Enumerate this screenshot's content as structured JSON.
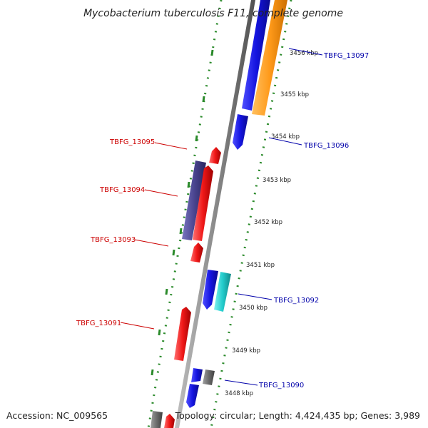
{
  "title": "Mycobacterium tuberculosis F11, complete genome",
  "accession": "Accession: NC_009565",
  "summary": "Topology: circular; Length: 4,424,435 bp; Genes: 3,989",
  "ticks": [
    "3456 kbp",
    "3455 kbp",
    "3454 kbp",
    "3453 kbp",
    "3452 kbp",
    "3451 kbp",
    "3450 kbp",
    "3449 kbp",
    "3448 kbp"
  ],
  "gene_labels": {
    "g13097": "TBFG_13097",
    "g13096": "TBFG_13096",
    "g13095": "TBFG_13095",
    "g13094": "TBFG_13094",
    "g13093": "TBFG_13093",
    "g13092": "TBFG_13092",
    "g13091": "TBFG_13091",
    "g13090": "TBFG_13090"
  },
  "colors": {
    "backbone": "#8a8a8a",
    "ring_dots": "#2a8a2a",
    "gene_blue": "#1414e0",
    "gene_orange": "#ff9a1a",
    "gene_red": "#f01818",
    "gene_purple": "#4a4590",
    "gene_cyan": "#22cccc",
    "gene_gray": "#6c6c6c",
    "label_red": "#cc0000",
    "label_blue": "#0000aa"
  }
}
